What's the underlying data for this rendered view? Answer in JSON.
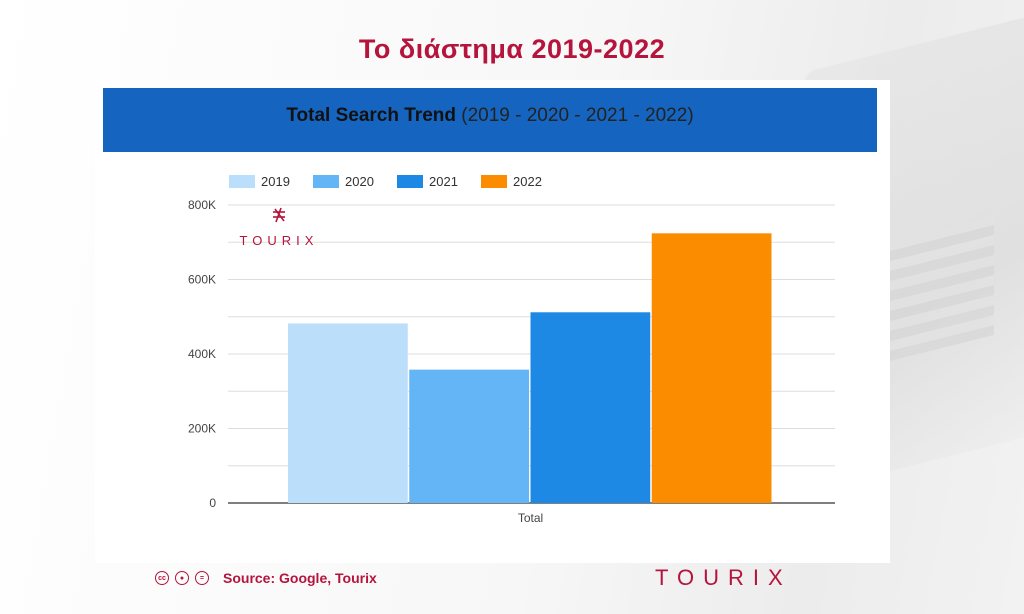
{
  "page": {
    "heading": "Το διάστημα 2019-2022",
    "source": "Source: Google, Tourix",
    "logo_text": "TOURIX",
    "watermark_text": "TOURIX"
  },
  "chart_data": {
    "type": "bar",
    "title": "Total Search Trend",
    "subtitle": "(2019 - 2020 - 2021 - 2022)",
    "categories": [
      "Total"
    ],
    "series": [
      {
        "name": "2019",
        "values": [
          482000
        ],
        "color": "#bbdefb"
      },
      {
        "name": "2020",
        "values": [
          358000
        ],
        "color": "#64b5f6"
      },
      {
        "name": "2021",
        "values": [
          512000
        ],
        "color": "#1e88e5"
      },
      {
        "name": "2022",
        "values": [
          724000
        ],
        "color": "#fb8c00"
      }
    ],
    "yticks": [
      {
        "value": 0,
        "label": "0"
      },
      {
        "value": 200000,
        "label": "200K"
      },
      {
        "value": 400000,
        "label": "400K"
      },
      {
        "value": 600000,
        "label": "600K"
      },
      {
        "value": 800000,
        "label": "800K"
      }
    ],
    "ylim": [
      0,
      800000
    ],
    "xlabel": "",
    "ylabel": "",
    "grid": true,
    "legend": "top-left"
  },
  "colors": {
    "accent": "#b5143c",
    "banner": "#1565c0"
  }
}
